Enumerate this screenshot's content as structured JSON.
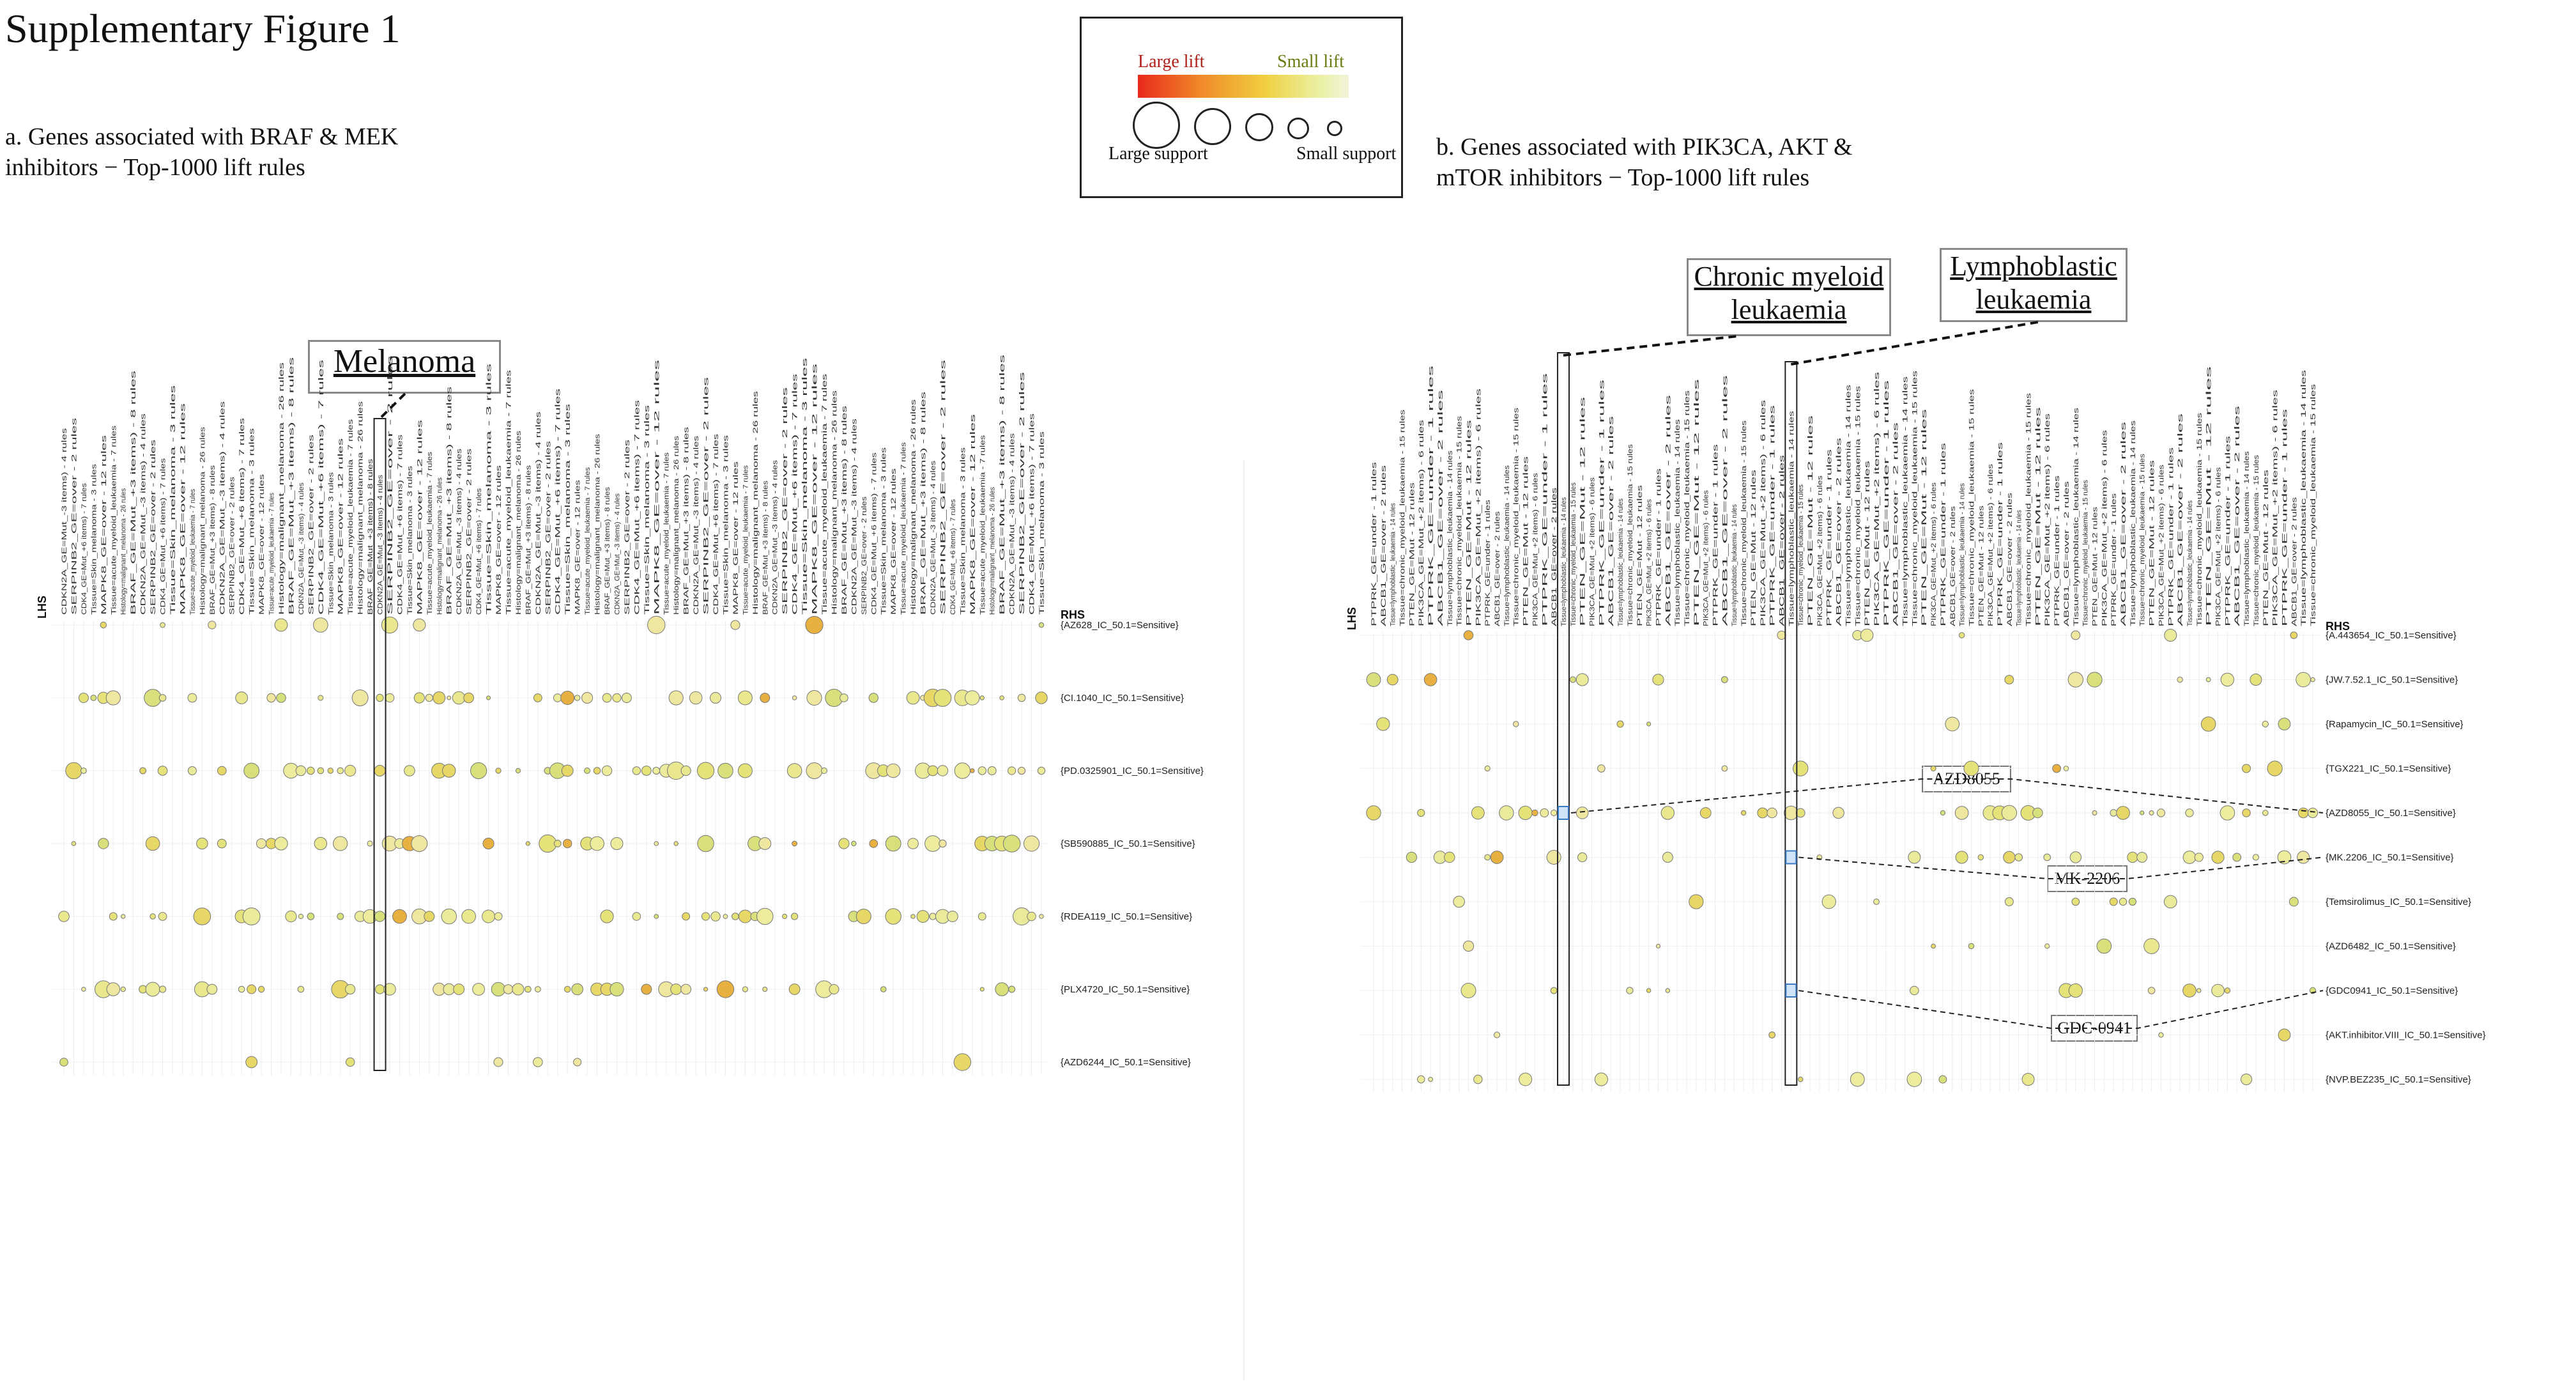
{
  "figure": {
    "title": "Supplementary Figure 1",
    "panel_a_caption": "a. Genes associated with BRAF & MEK\ninhibitors − Top-1000 lift rules",
    "panel_b_caption": "b. Genes associated with PIK3CA, AKT &\nmTOR inhibitors  − Top-1000 lift rules"
  },
  "legend": {
    "large_lift": "Large lift",
    "small_lift": "Small lift",
    "large_support": "Large support",
    "small_support": "Small support",
    "colors": {
      "large_lift": "#e8291c",
      "small_lift": "#f2f4d8"
    }
  },
  "callouts": {
    "melanoma": "Melanoma",
    "cml_line1": "Chronic myeloid",
    "cml_line2": "leukaemia",
    "lympho_line1": "Lymphoblastic",
    "lympho_line2": "leukaemia"
  },
  "drug_tags": {
    "azd8055": "AZD8055",
    "mk2206": "MK-2206",
    "gdc0941": "GDC-0941"
  },
  "panel_a": {
    "lhs_label": "LHS",
    "rhs_label": "RHS",
    "rhs_rows": [
      "{AZ628_IC_50.1=Sensitive}",
      "{CI.1040_IC_50.1=Sensitive}",
      "{PD.0325901_IC_50.1=Sensitive}",
      "{SB590885_IC_50.1=Sensitive}",
      "{RDEA119_IC_50.1=Sensitive}",
      "{PLX4720_IC_50.1=Sensitive}",
      "{AZD6244_IC_50.1=Sensitive}"
    ],
    "column_count": 100,
    "highlight_column": 32,
    "sample_column_labels": [
      "CDKN2A_GE=Mut_-3 items) - 4 rules",
      "SERPINB2_GE=over - 2 rules",
      "CDK4_GE=Mut_+6 items) - 7 rules",
      "Tissue=Skin_melanoma - 3 rules",
      "MAPK8_GE=over - 12 rules",
      "Tissue=acute_myeloid_leukaemia - 7 rules",
      "Histology=malignant_melanoma - 26 rules",
      "BRAF_GE=Mut_+3 items) - 8 rules"
    ]
  },
  "panel_b": {
    "lhs_label": "LHS",
    "rhs_label": "RHS",
    "rhs_rows": [
      "{A.443654_IC_50.1=Sensitive}",
      "{JW.7.52.1_IC_50.1=Sensitive}",
      "{Rapamycin_IC_50.1=Sensitive}",
      "{TGX221_IC_50.1=Sensitive}",
      "{AZD8055_IC_50.1=Sensitive}",
      "{MK.2206_IC_50.1=Sensitive}",
      "{Temsirolimus_IC_50.1=Sensitive}",
      "{AZD6482_IC_50.1=Sensitive}",
      "{GDC0941_IC_50.1=Sensitive}",
      "{AKT.inhibitor.VIII_IC_50.1=Sensitive}",
      "{NVP.BEZ235_IC_50.1=Sensitive}"
    ],
    "column_count": 100,
    "highlight_columns": [
      20,
      44
    ],
    "sample_column_labels": [
      "PTPRK_GE=under - 1 rules",
      "ABCB1_GE=over - 2 rules",
      "Tissue=lymphoblastic_leukaemia - 14 rules",
      "Tissue=chronic_myeloid_leukaemia - 15 rules",
      "PTEN_GE=Mut - 12 rules",
      "PIK3CA_GE=Mut_+2 items) - 6 rules"
    ]
  }
}
